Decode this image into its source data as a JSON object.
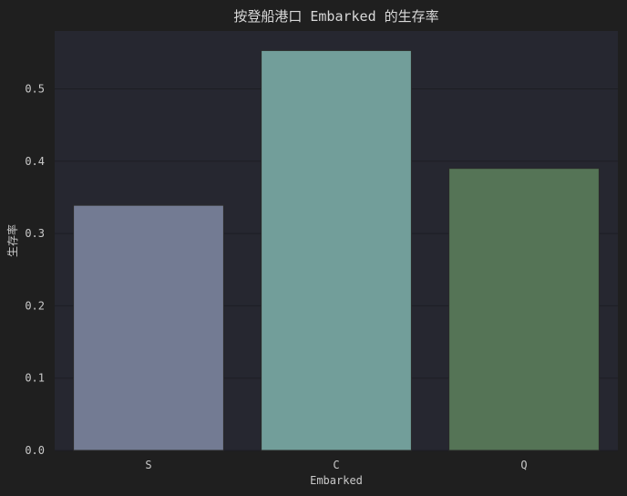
{
  "chart_data": {
    "type": "bar",
    "title": "按登船港口 Embarked 的生存率",
    "xlabel": "Embarked",
    "ylabel": "生存率",
    "categories": [
      "S",
      "C",
      "Q"
    ],
    "values": [
      0.339,
      0.553,
      0.39
    ],
    "colors": [
      "#737b93",
      "#729e9a",
      "#557456"
    ],
    "ylim": [
      0,
      0.58
    ],
    "yticks": [
      0.0,
      0.1,
      0.2,
      0.3,
      0.4,
      0.5
    ],
    "ytick_labels": [
      "0.0",
      "0.1",
      "0.2",
      "0.3",
      "0.4",
      "0.5"
    ],
    "grid": true,
    "legend": "none"
  },
  "theme": {
    "figure_bg": "#1f1f1f",
    "plot_bg": "#262730",
    "grid_color": "#1d1e24",
    "text_color": "#c9c9c9",
    "bar_edge": "#2a2a2a"
  }
}
